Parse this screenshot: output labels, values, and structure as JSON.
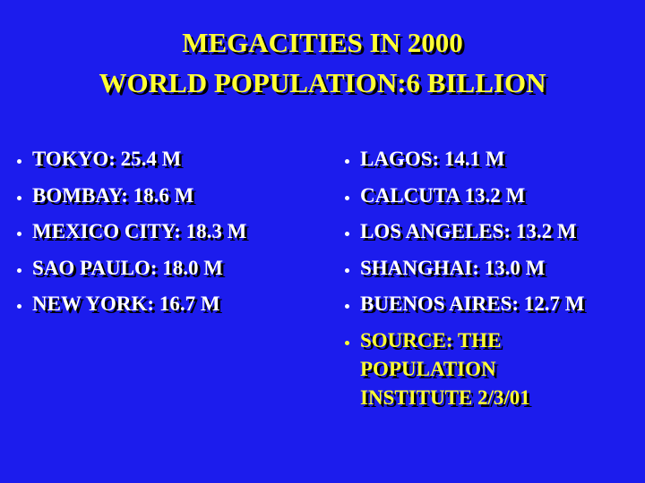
{
  "title": {
    "line1": "MEGACITIES IN 2000",
    "line2": "WORLD POPULATION:6 BILLION"
  },
  "left_list": [
    "TOKYO: 25.4 M",
    "BOMBAY: 18.6 M",
    "MEXICO CITY: 18.3 M",
    "SAO PAULO: 18.0 M",
    "NEW YORK: 16.7 M"
  ],
  "right_list": [
    "LAGOS: 14.1 M",
    "CALCUTA 13.2 M",
    "LOS ANGELES: 13.2 M",
    "SHANGHAI: 13.0 M",
    "BUENOS AIRES: 12.7 M"
  ],
  "source": "SOURCE: THE POPULATION INSTITUTE 2/3/01"
}
